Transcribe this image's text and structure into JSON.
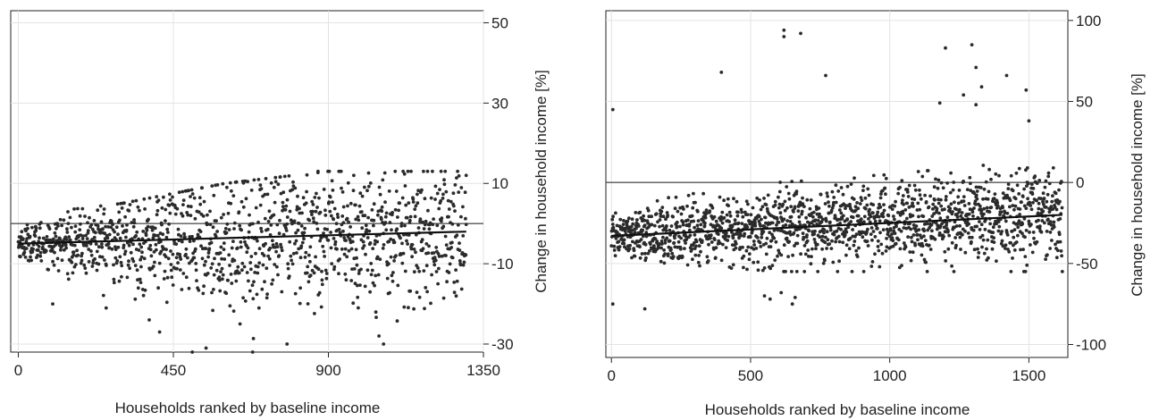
{
  "chart_data": [
    {
      "type": "scatter",
      "title": "",
      "xlabel": "Households ranked by baseline income",
      "ylabel": "Change in household income [%]",
      "xlim": [
        -22,
        1350
      ],
      "ylim": [
        -32,
        53
      ],
      "xticks": [
        0,
        450,
        900,
        1350
      ],
      "xtick_labels": [
        "0",
        "450",
        "900",
        "1350"
      ],
      "yticks": [
        -30,
        -10,
        10,
        30,
        50
      ],
      "ytick_labels": [
        "-30",
        "-10",
        "10",
        "30",
        "50"
      ],
      "y_axis_side": "right",
      "grid": true,
      "reference_line_y": 0,
      "n_points": 1300,
      "trend_line": {
        "x": [
          0,
          1300
        ],
        "y": [
          -5,
          -2
        ]
      },
      "spread_by_rank": [
        {
          "x": 0,
          "low": -8,
          "high": 2
        },
        {
          "x": 300,
          "low": -20,
          "high": 5
        },
        {
          "x": 600,
          "low": -32,
          "high": 10
        },
        {
          "x": 900,
          "low": -28,
          "high": 13
        },
        {
          "x": 1300,
          "low": -30,
          "high": 13
        }
      ],
      "outliers": [
        {
          "x": 505,
          "y": -32
        },
        {
          "x": 545,
          "y": -31
        },
        {
          "x": 680,
          "y": -32
        },
        {
          "x": 780,
          "y": -30
        },
        {
          "x": 1060,
          "y": -30
        },
        {
          "x": 410,
          "y": -27
        },
        {
          "x": 380,
          "y": -24
        },
        {
          "x": 100,
          "y": -20
        },
        {
          "x": 255,
          "y": -21
        },
        {
          "x": 870,
          "y": 13
        },
        {
          "x": 1140,
          "y": 13
        },
        {
          "x": 1300,
          "y": 12
        }
      ]
    },
    {
      "type": "scatter",
      "title": "",
      "xlabel": "Households ranked by baseline income",
      "ylabel": "Change in household income [%]",
      "xlim": [
        -20,
        1640
      ],
      "ylim": [
        -108,
        106
      ],
      "xticks": [
        0,
        500,
        1000,
        1500
      ],
      "xtick_labels": [
        "0",
        "500",
        "1000",
        "1500"
      ],
      "yticks": [
        -100,
        -50,
        0,
        50,
        100
      ],
      "ytick_labels": [
        "-100",
        "-50",
        "0",
        "50",
        "100"
      ],
      "y_axis_side": "right",
      "grid": true,
      "reference_line_y": 0,
      "n_points": 1620,
      "trend_line": {
        "x": [
          0,
          1620
        ],
        "y": [
          -33,
          -20
        ]
      },
      "spread_by_rank": [
        {
          "x": 0,
          "low": -45,
          "high": -20
        },
        {
          "x": 200,
          "low": -50,
          "high": -5
        },
        {
          "x": 600,
          "low": -55,
          "high": 0
        },
        {
          "x": 1000,
          "low": -55,
          "high": 5
        },
        {
          "x": 1600,
          "low": -55,
          "high": 15
        }
      ],
      "outliers": [
        {
          "x": 5,
          "y": 45
        },
        {
          "x": 5,
          "y": -75
        },
        {
          "x": 120,
          "y": -78
        },
        {
          "x": 620,
          "y": 94
        },
        {
          "x": 620,
          "y": 90
        },
        {
          "x": 680,
          "y": 92
        },
        {
          "x": 395,
          "y": 68
        },
        {
          "x": 770,
          "y": 66
        },
        {
          "x": 1200,
          "y": 83
        },
        {
          "x": 1295,
          "y": 85
        },
        {
          "x": 1310,
          "y": 71
        },
        {
          "x": 1420,
          "y": 66
        },
        {
          "x": 1490,
          "y": 57
        },
        {
          "x": 1265,
          "y": 54
        },
        {
          "x": 1330,
          "y": 59
        },
        {
          "x": 1180,
          "y": 49
        },
        {
          "x": 1310,
          "y": 48
        },
        {
          "x": 1500,
          "y": 38
        },
        {
          "x": 550,
          "y": -70
        },
        {
          "x": 650,
          "y": -75
        },
        {
          "x": 610,
          "y": -68
        },
        {
          "x": 570,
          "y": -72
        },
        {
          "x": 660,
          "y": -71
        }
      ]
    }
  ]
}
